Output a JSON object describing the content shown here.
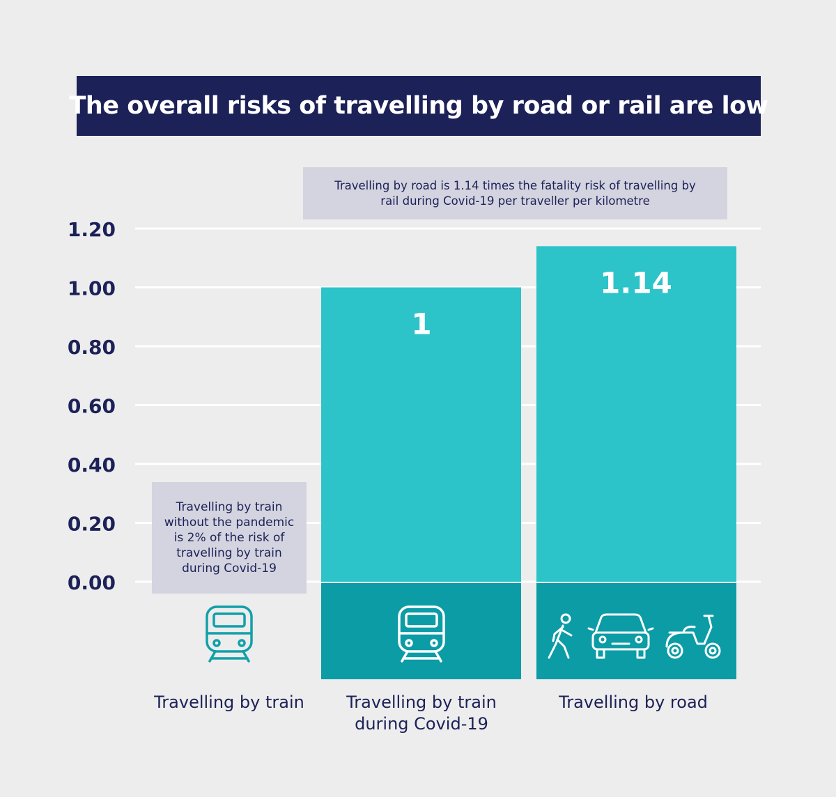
{
  "title": "The overall risks of travelling by road or rail are low",
  "notes": {
    "top": "Travelling by road is 1.14 times the fatality risk of travelling by rail during Covid-19 per traveller per kilometre",
    "left": "Travelling by train without the pandemic is 2% of the risk of travelling by train during Covid-19"
  },
  "colors": {
    "title_bg": "#1c2157",
    "bar": "#2cc3c9",
    "bar_base": "#0c9ca6",
    "icon_train": "#12a0a8",
    "text": "#1c2157",
    "note_bg": "#d4d4e0"
  },
  "chart_data": {
    "type": "bar",
    "title": "The overall risks of travelling by road or rail are low",
    "categories": [
      "Travelling by train",
      "Travelling by train\nduring Covid-19",
      "Travelling by road"
    ],
    "values": [
      0.02,
      1,
      1.14
    ],
    "data_labels": [
      "",
      "1",
      "1.14"
    ],
    "ylim": [
      0,
      1.2
    ],
    "yticks": [
      "0.00",
      "0.20",
      "0.40",
      "0.60",
      "0.80",
      "1.00",
      "1.20"
    ],
    "grid": true,
    "icons": [
      [
        "train-icon"
      ],
      [
        "train-icon"
      ],
      [
        "pedestrian-icon",
        "car-icon",
        "scooter-icon"
      ]
    ]
  }
}
